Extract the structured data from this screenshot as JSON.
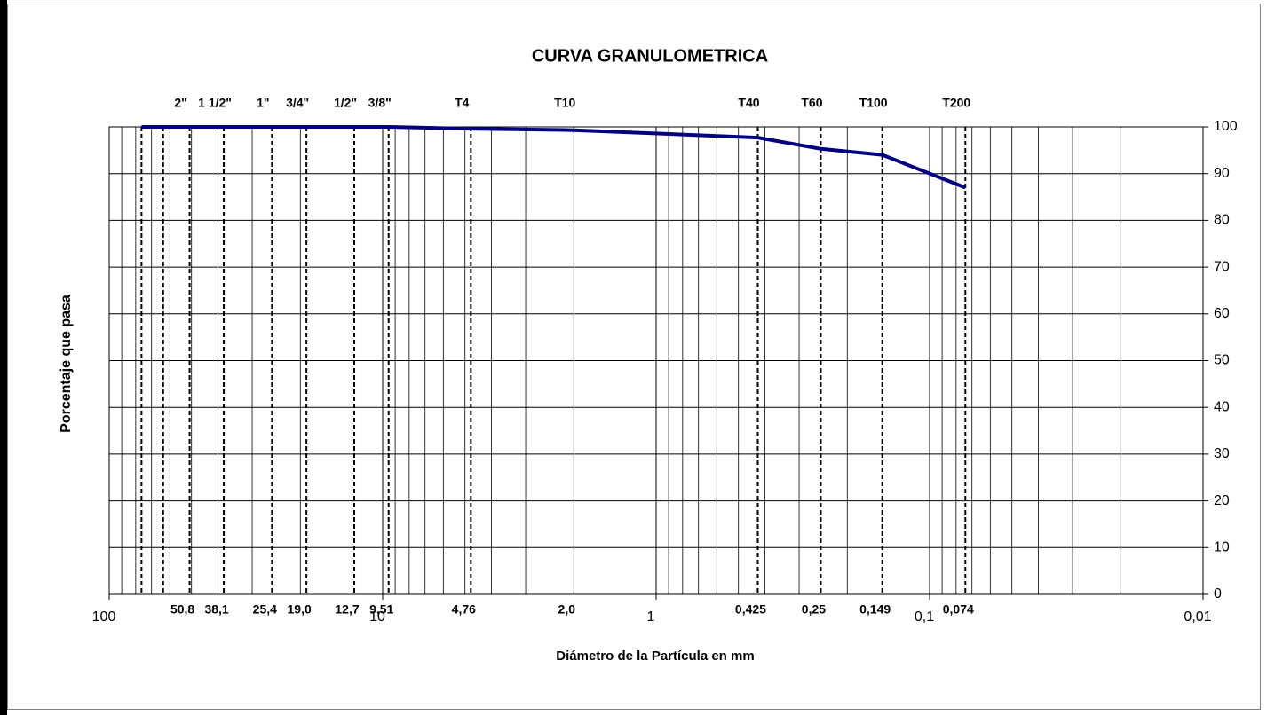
{
  "chart_data": {
    "type": "line",
    "title": "CURVA GRANULOMETRICA",
    "x_label": "Diámetro de la Partícula en mm",
    "y_label": "Porcentaje que pasa",
    "x_log": true,
    "x_reversed": true,
    "xlim": [
      100,
      0.01
    ],
    "xticks": [
      100,
      10,
      1,
      {
        "value": 0.1,
        "label": "0,1"
      },
      {
        "value": 0.01,
        "label": "0,01"
      }
    ],
    "ylim": [
      0,
      100
    ],
    "yticks": [
      0,
      10,
      20,
      30,
      40,
      50,
      60,
      70,
      80,
      90,
      100
    ],
    "y_axis_side": "right",
    "grid": true,
    "x": [
      76.2,
      63.5,
      50.8,
      38.1,
      25.4,
      19.0,
      12.7,
      9.51,
      4.76,
      2.0,
      0.425,
      0.25,
      0.149,
      0.074
    ],
    "x_value_labels": [
      null,
      null,
      "50,8",
      "38,1",
      "25,4",
      "19,0",
      "12,7",
      "9,51",
      "4,76",
      "2,0",
      "0,425",
      "0,25",
      "0,149",
      "0,074"
    ],
    "x_top_labels": [
      null,
      null,
      "2\"",
      "1 1/2\"",
      "1\"",
      "3/4\"",
      "1/2\"",
      "3/8\"",
      "T4",
      "T10",
      "T40",
      "T60",
      "T100",
      "T200"
    ],
    "sieve_lines": [
      true,
      true,
      true,
      true,
      true,
      true,
      true,
      true,
      true,
      false,
      true,
      true,
      true,
      true
    ],
    "series": [
      {
        "color": "#000080",
        "values": [
          100,
          100,
          100,
          100,
          100,
          100,
          100,
          100,
          99.6,
          99.3,
          97.7,
          95.3,
          94.0,
          87.0
        ]
      }
    ]
  }
}
